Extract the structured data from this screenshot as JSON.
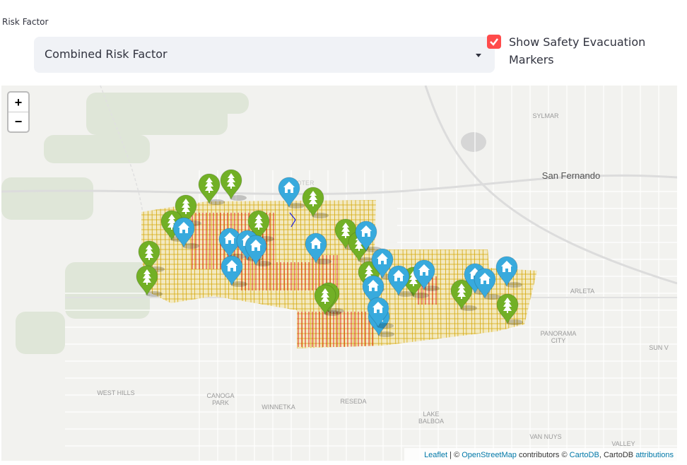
{
  "header": {
    "label": "Risk Factor"
  },
  "select": {
    "value": "Combined Risk Factor"
  },
  "checkbox": {
    "label": "Show Safety Evacuation Markers",
    "checked": true
  },
  "map": {
    "zoom_in": "+",
    "zoom_out": "−",
    "place_labels": [
      {
        "lines": [
          "SYLMAR"
        ]
      },
      {
        "lines": [
          "San Fernando"
        ]
      },
      {
        "lines": [
          "ARLETA"
        ]
      },
      {
        "lines": [
          "PANORAMA",
          "CITY"
        ]
      },
      {
        "lines": [
          "SUN V"
        ]
      },
      {
        "lines": [
          "WEST HILLS"
        ]
      },
      {
        "lines": [
          "CANOGA",
          "PARK"
        ]
      },
      {
        "lines": [
          "WINNETKA"
        ]
      },
      {
        "lines": [
          "RESEDA"
        ]
      },
      {
        "lines": [
          "LAKE",
          "BALBOA"
        ]
      },
      {
        "lines": [
          "VAN NUYS"
        ]
      },
      {
        "lines": [
          "VALLEY"
        ]
      },
      {
        "lines": [
          "OTER"
        ]
      }
    ],
    "attribution": [
      "Leaflet",
      " | © ",
      "OpenStreetMap",
      " contributors © ",
      "CartoDB",
      ", CartoDB ",
      "attributions"
    ]
  }
}
